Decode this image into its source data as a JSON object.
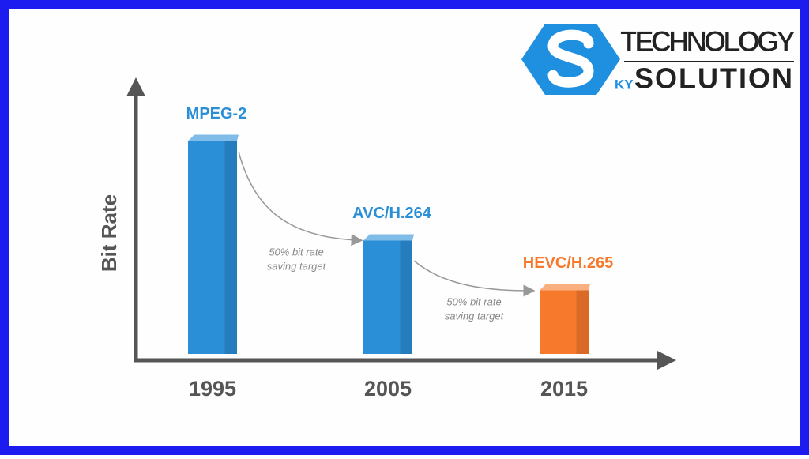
{
  "chart_data": {
    "type": "bar",
    "y_label": "Bit Rate",
    "categories": [
      "1995",
      "2005",
      "2015"
    ],
    "labels": [
      "MPEG-2",
      "AVC/H.264",
      "HEVC/H.265"
    ],
    "values": [
      77,
      41,
      23
    ],
    "colors": [
      "#2b8fd8",
      "#2b8fd8",
      "#f77a2c"
    ],
    "ylim": [
      0,
      100
    ],
    "annotations": [
      [
        "50% bit rate",
        "saving target"
      ],
      [
        "50% bit rate",
        "saving target"
      ]
    ]
  },
  "logo": {
    "mark": "KY",
    "line1": "TECHNOLOGY",
    "line2": "SOLUTION"
  }
}
